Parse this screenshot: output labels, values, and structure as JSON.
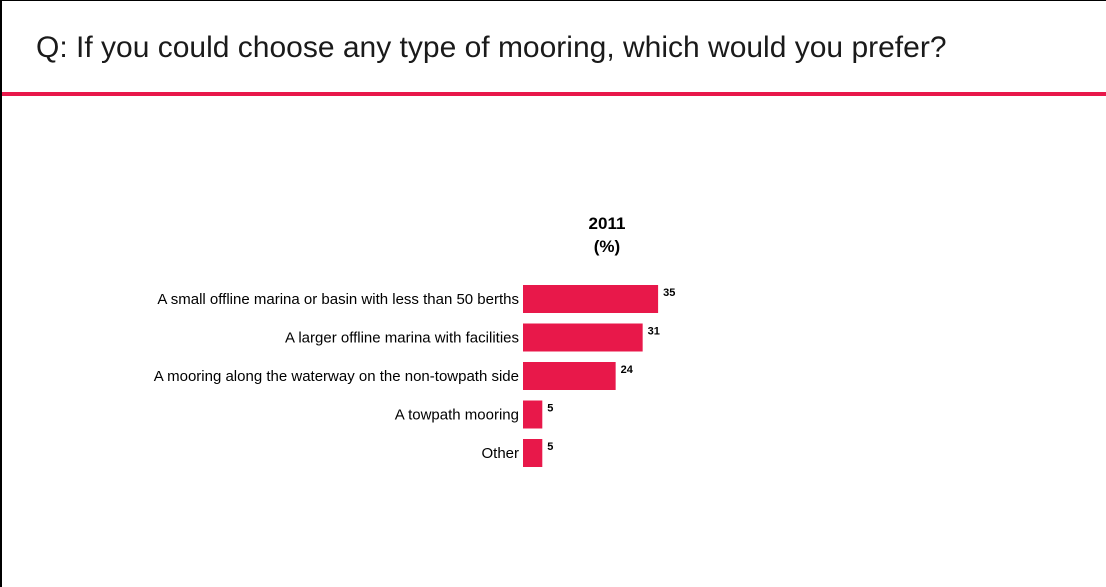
{
  "question": "Q:  If you could choose any type of mooring, which would you prefer?",
  "colors": {
    "accent": "#e8184a",
    "text": "#000000"
  },
  "chart_data": {
    "type": "bar",
    "orientation": "horizontal",
    "series_header": "2011",
    "unit_label": "(%)",
    "categories": [
      "A small offline marina or basin with less than 50 berths",
      "A larger offline marina with facilities",
      "A mooring along the waterway on the non-towpath side",
      "A towpath mooring",
      "Other"
    ],
    "values": [
      35,
      31,
      24,
      5,
      5
    ],
    "xlim": [
      0,
      100
    ],
    "grid": false,
    "legend": "none"
  }
}
